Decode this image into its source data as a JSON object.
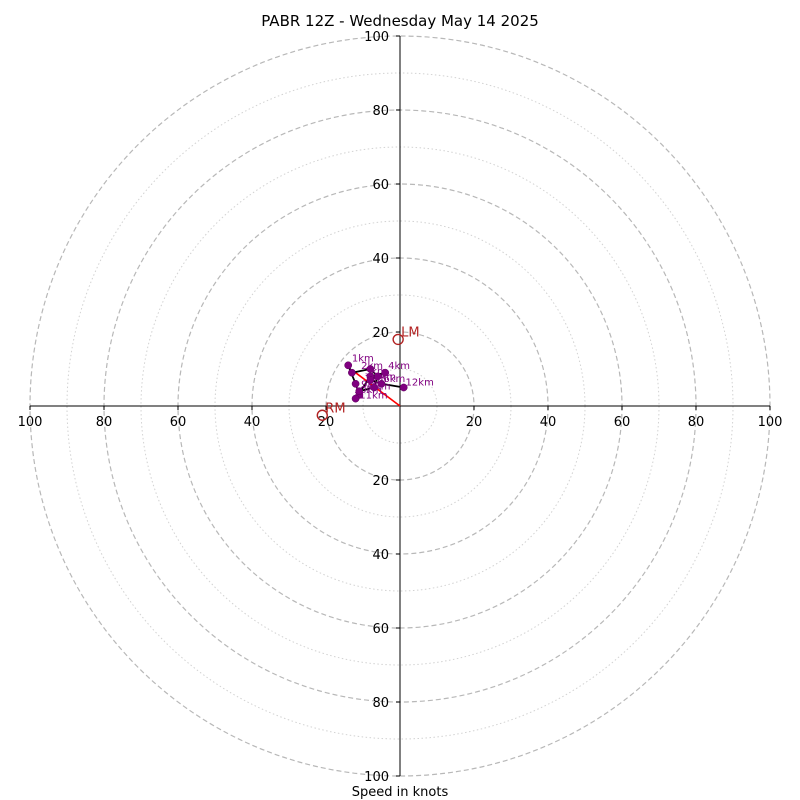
{
  "chart_data": {
    "type": "scatter",
    "subtype": "hodograph",
    "title": "PABR 12Z - Wednesday May 14 2025",
    "xlabel": "Speed in knots",
    "max_speed": 100,
    "major_rings": [
      20,
      40,
      60,
      80,
      100
    ],
    "minor_rings": [
      10,
      30,
      50,
      70,
      90
    ],
    "tick_labels": [
      "100",
      "80",
      "60",
      "40",
      "20",
      "20",
      "40",
      "60",
      "80",
      "100"
    ],
    "hodograph": {
      "u": [
        -11,
        -12,
        -14,
        -13,
        -8,
        -6,
        -7,
        -11,
        -12,
        -8,
        -4,
        -8,
        -5,
        1
      ],
      "v": [
        3,
        6,
        11,
        9,
        10,
        8,
        5,
        4,
        2,
        8,
        9,
        7,
        6,
        5
      ],
      "line_color": "#000000",
      "point_color": "#800080"
    },
    "height_labels": [
      {
        "text": "1km",
        "u": -13,
        "v": 12
      },
      {
        "text": "2km",
        "u": -10.5,
        "v": 10
      },
      {
        "text": "3km",
        "u": -9.5,
        "v": 8.5
      },
      {
        "text": "4km",
        "u": -3.2,
        "v": 10
      },
      {
        "text": "5km",
        "u": -7,
        "v": 7
      },
      {
        "text": "6km",
        "u": -4.5,
        "v": 6.5
      },
      {
        "text": "7km",
        "u": -9.5,
        "v": 6.5
      },
      {
        "text": "8km",
        "u": -8.5,
        "v": 4.5
      },
      {
        "text": "9km",
        "u": -10.5,
        "v": 5
      },
      {
        "text": "10km",
        "u": -12.5,
        "v": 3.5
      },
      {
        "text": "11km",
        "u": -11,
        "v": 2
      },
      {
        "text": "12km",
        "u": 1.5,
        "v": 5.5
      }
    ],
    "storm_motion": [
      {
        "label": "LM",
        "u": -0.5,
        "v": 18
      },
      {
        "label": "RM",
        "u": -21,
        "v": -2.5
      }
    ],
    "shear_vector": {
      "u": -12,
      "v": 9
    },
    "colors": {
      "ring": "#b8b8b8",
      "hodograph_line": "#000000",
      "points": "#800080",
      "storm_motion": "#b22222",
      "shear": "#ff0000"
    }
  }
}
